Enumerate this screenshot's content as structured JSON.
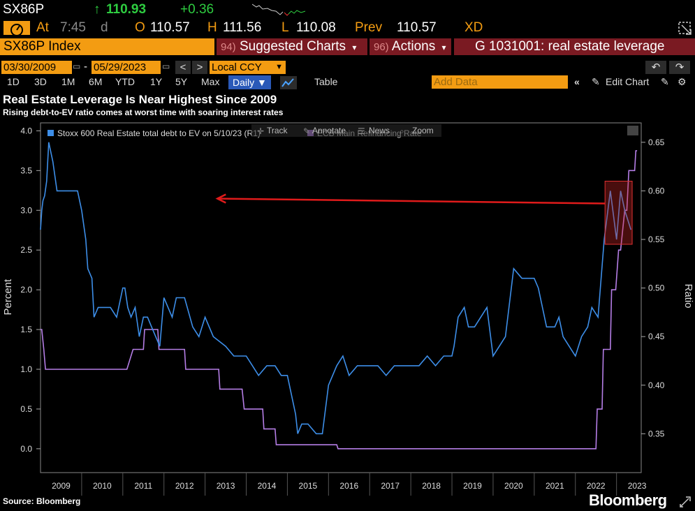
{
  "ticker": {
    "symbol": "SX86P",
    "arrow": "↑",
    "last": "110.93",
    "change": "+0.36"
  },
  "quote": {
    "at_label": "At",
    "time": "7:45",
    "suffix": "d",
    "open_label": "O",
    "open": "110.57",
    "high_label": "H",
    "high": "111.56",
    "low_label": "L",
    "low": "110.08",
    "prev_label": "Prev",
    "prev": "110.57",
    "xd": "XD"
  },
  "security": "SX86P Index",
  "menus": {
    "suggested_num": "94)",
    "suggested": "Suggested Charts",
    "actions_num": "96)",
    "actions": "Actions",
    "chart_id": "G 1031001: real estate leverage"
  },
  "dates": {
    "start": "03/30/2009",
    "sep": "-",
    "end": "05/29/2023",
    "currency": "Local CCY"
  },
  "periods": [
    "1D",
    "3D",
    "1M",
    "6M",
    "YTD",
    "1Y",
    "5Y",
    "Max"
  ],
  "frequency": "Daily ▼",
  "table_label": "Table",
  "add_data_placeholder": "Add Data",
  "edit_chart": "Edit Chart",
  "toolbar": {
    "track": "Track",
    "annotate": "Annotate",
    "news": "News",
    "zoom": "Zoom"
  },
  "title": "Real Estate Leverage Is Near Highest Since 2009",
  "subtitle": "Rising debt-to-EV ratio comes at worst time with soaring interest rates",
  "source": "Source: Bloomberg",
  "brand": "Bloomberg",
  "colors": {
    "blue": "#3d8ee8",
    "purple": "#b57ee6",
    "orange": "#f39c12",
    "green": "#2ecc40",
    "red_menu": "#7a1a22",
    "arrow": "#e01b1b"
  },
  "chart_data": {
    "type": "line",
    "title": "Real Estate Leverage Is Near Highest Since 2009",
    "subtitle": "Rising debt-to-EV ratio comes at worst time with soaring interest rates",
    "xlabel": "",
    "ylabel_left": "Percent",
    "ylabel_right": "Ratio",
    "x_ticks": [
      "2009",
      "2010",
      "2011",
      "2012",
      "2013",
      "2014",
      "2015",
      "2016",
      "2017",
      "2018",
      "2019",
      "2020",
      "2021",
      "2022",
      "2023"
    ],
    "xlim": [
      2009.0,
      2023.6
    ],
    "ylim_left": [
      -0.3,
      4.1
    ],
    "y_ticks_left": [
      "0.0",
      "0.5",
      "1.0",
      "1.5",
      "2.0",
      "2.5",
      "3.0",
      "3.5",
      "4.0"
    ],
    "ylim_right": [
      0.31,
      0.67
    ],
    "y_ticks_right": [
      "0.35",
      "0.40",
      "0.45",
      "0.50",
      "0.55",
      "0.60",
      "0.65"
    ],
    "legend_position": "top-left",
    "series": [
      {
        "name": "ECB Main Refinancing Rate",
        "axis": "left",
        "color": "#b57ee6",
        "x": [
          2009.0,
          2009.03,
          2009.08,
          2009.12,
          2009.36,
          2009.4,
          2010.0,
          2011.0,
          2011.1,
          2011.25,
          2011.5,
          2011.53,
          2011.85,
          2011.88,
          2012.0,
          2012.5,
          2012.53,
          2013.0,
          2013.33,
          2013.36,
          2013.9,
          2013.95,
          2014.4,
          2014.43,
          2014.7,
          2014.73,
          2015.0,
          2015.5,
          2016.0,
          2016.2,
          2016.23,
          2017.0,
          2018.0,
          2019.0,
          2020.0,
          2021.0,
          2022.0,
          2022.5,
          2022.53,
          2022.65,
          2022.68,
          2022.85,
          2022.88,
          2022.98,
          2023.05,
          2023.1,
          2023.2,
          2023.25,
          2023.3,
          2023.36,
          2023.44,
          2023.47,
          2023.5
        ],
        "y": [
          1.5,
          1.5,
          1.25,
          1.0,
          1.0,
          1.0,
          1.0,
          1.0,
          1.0,
          1.25,
          1.25,
          1.5,
          1.5,
          1.25,
          1.25,
          1.25,
          1.0,
          1.0,
          1.0,
          0.75,
          0.75,
          0.5,
          0.5,
          0.25,
          0.25,
          0.05,
          0.05,
          0.05,
          0.05,
          0.05,
          0.0,
          0.0,
          0.0,
          0.0,
          0.0,
          0.0,
          0.0,
          0.0,
          0.5,
          0.5,
          1.25,
          1.25,
          2.0,
          2.0,
          2.5,
          2.5,
          3.0,
          3.0,
          3.5,
          3.5,
          3.5,
          3.75,
          3.75
        ]
      },
      {
        "name": "Stoxx 600 Real Estate total debt to EV on 5/10/23 (R1)",
        "axis": "right",
        "color": "#3d8ee8",
        "x": [
          2009.0,
          2009.03,
          2009.06,
          2009.1,
          2009.15,
          2009.2,
          2009.3,
          2009.4,
          2009.5,
          2009.9,
          2010.0,
          2010.1,
          2010.15,
          2010.25,
          2010.3,
          2010.4,
          2010.5,
          2010.7,
          2010.85,
          2011.0,
          2011.05,
          2011.12,
          2011.2,
          2011.3,
          2011.4,
          2011.5,
          2011.6,
          2011.7,
          2011.8,
          2011.9,
          2012.0,
          2012.1,
          2012.2,
          2012.3,
          2012.5,
          2012.7,
          2012.85,
          2013.0,
          2013.2,
          2013.5,
          2013.7,
          2013.9,
          2014.0,
          2014.15,
          2014.3,
          2014.5,
          2014.7,
          2014.85,
          2015.0,
          2015.1,
          2015.2,
          2015.25,
          2015.35,
          2015.5,
          2015.7,
          2015.85,
          2016.0,
          2016.2,
          2016.35,
          2016.5,
          2016.7,
          2016.9,
          2017.0,
          2017.2,
          2017.4,
          2017.6,
          2017.8,
          2018.0,
          2018.2,
          2018.4,
          2018.6,
          2018.8,
          2019.0,
          2019.05,
          2019.15,
          2019.3,
          2019.4,
          2019.55,
          2019.7,
          2019.85,
          2020.0,
          2020.15,
          2020.3,
          2020.5,
          2020.7,
          2020.9,
          2021.0,
          2021.1,
          2021.3,
          2021.5,
          2021.6,
          2021.7,
          2021.85,
          2022.0,
          2022.15,
          2022.3,
          2022.4,
          2022.55,
          2022.7,
          2022.85,
          2023.0,
          2023.1,
          2023.2,
          2023.35
        ],
        "y": [
          0.56,
          0.58,
          0.59,
          0.595,
          0.61,
          0.65,
          0.63,
          0.6,
          0.6,
          0.6,
          0.58,
          0.55,
          0.52,
          0.51,
          0.47,
          0.48,
          0.48,
          0.48,
          0.47,
          0.5,
          0.5,
          0.48,
          0.47,
          0.48,
          0.45,
          0.47,
          0.47,
          0.46,
          0.45,
          0.44,
          0.49,
          0.48,
          0.47,
          0.49,
          0.49,
          0.46,
          0.45,
          0.47,
          0.45,
          0.44,
          0.43,
          0.43,
          0.43,
          0.42,
          0.41,
          0.42,
          0.42,
          0.41,
          0.41,
          0.39,
          0.37,
          0.35,
          0.36,
          0.36,
          0.35,
          0.35,
          0.4,
          0.42,
          0.43,
          0.41,
          0.42,
          0.42,
          0.42,
          0.42,
          0.41,
          0.42,
          0.42,
          0.42,
          0.42,
          0.43,
          0.42,
          0.43,
          0.43,
          0.44,
          0.47,
          0.48,
          0.46,
          0.46,
          0.47,
          0.48,
          0.43,
          0.44,
          0.45,
          0.52,
          0.51,
          0.51,
          0.51,
          0.5,
          0.46,
          0.46,
          0.47,
          0.45,
          0.44,
          0.43,
          0.45,
          0.46,
          0.48,
          0.47,
          0.55,
          0.6,
          0.55,
          0.6,
          0.58,
          0.56
        ]
      }
    ]
  }
}
